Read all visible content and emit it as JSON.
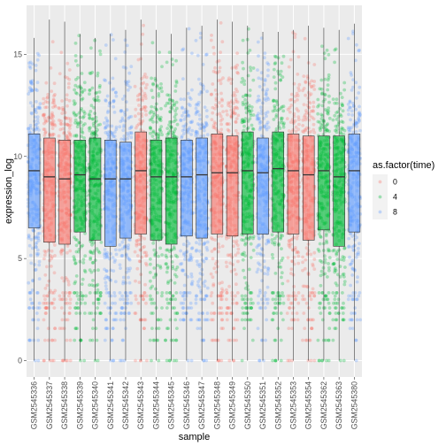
{
  "chart_data": {
    "type": "boxplot-jitter",
    "xlabel": "sample",
    "ylabel": "expression_log",
    "ylim": [
      -0.8,
      17.4
    ],
    "yticks": [
      0,
      5,
      10,
      15
    ],
    "legend": {
      "title": "as.factor(time)",
      "position": "right",
      "entries": [
        {
          "label": "0",
          "color": "#F8766D"
        },
        {
          "label": "4",
          "color": "#00BA38"
        },
        {
          "label": "8",
          "color": "#619CFF"
        }
      ]
    },
    "samples": [
      {
        "name": "GSM2545336",
        "time": "8",
        "min": 0,
        "q1": 6.5,
        "median": 9.3,
        "q3": 11.1,
        "max": 15.8
      },
      {
        "name": "GSM2545337",
        "time": "0",
        "min": 0,
        "q1": 5.8,
        "median": 9.0,
        "q3": 10.9,
        "max": 16.7
      },
      {
        "name": "GSM2545338",
        "time": "0",
        "min": 0,
        "q1": 5.7,
        "median": 8.9,
        "q3": 10.8,
        "max": 16.6
      },
      {
        "name": "GSM2545339",
        "time": "4",
        "min": 0,
        "q1": 6.3,
        "median": 9.1,
        "q3": 10.8,
        "max": 16.0
      },
      {
        "name": "GSM2545340",
        "time": "4",
        "min": 0,
        "q1": 5.9,
        "median": 8.9,
        "q3": 10.9,
        "max": 15.8
      },
      {
        "name": "GSM2545341",
        "time": "8",
        "min": 0,
        "q1": 5.6,
        "median": 8.9,
        "q3": 10.8,
        "max": 16.0
      },
      {
        "name": "GSM2545342",
        "time": "8",
        "min": 0,
        "q1": 6.0,
        "median": 8.9,
        "q3": 10.7,
        "max": 16.2
      },
      {
        "name": "GSM2545343",
        "time": "0",
        "min": 0,
        "q1": 6.2,
        "median": 9.3,
        "q3": 11.2,
        "max": 16.7
      },
      {
        "name": "GSM2545344",
        "time": "4",
        "min": 0,
        "q1": 5.9,
        "median": 9.0,
        "q3": 10.8,
        "max": 16.2
      },
      {
        "name": "GSM2545345",
        "time": "4",
        "min": 0,
        "q1": 5.7,
        "median": 9.0,
        "q3": 10.9,
        "max": 16.0
      },
      {
        "name": "GSM2545346",
        "time": "8",
        "min": 0,
        "q1": 6.1,
        "median": 9.0,
        "q3": 10.8,
        "max": 16.3
      },
      {
        "name": "GSM2545347",
        "time": "8",
        "min": 0,
        "q1": 6.0,
        "median": 9.1,
        "q3": 10.9,
        "max": 16.4
      },
      {
        "name": "GSM2545348",
        "time": "0",
        "min": 0,
        "q1": 6.2,
        "median": 9.2,
        "q3": 11.1,
        "max": 16.7
      },
      {
        "name": "GSM2545349",
        "time": "0",
        "min": 0,
        "q1": 6.1,
        "median": 9.2,
        "q3": 11.0,
        "max": 16.6
      },
      {
        "name": "GSM2545350",
        "time": "4",
        "min": 0,
        "q1": 6.2,
        "median": 9.3,
        "q3": 11.2,
        "max": 16.4
      },
      {
        "name": "GSM2545351",
        "time": "8",
        "min": 0,
        "q1": 6.2,
        "median": 9.2,
        "q3": 10.9,
        "max": 16.1
      },
      {
        "name": "GSM2545352",
        "time": "4",
        "min": 0,
        "q1": 6.3,
        "median": 9.4,
        "q3": 11.2,
        "max": 16.1
      },
      {
        "name": "GSM2545353",
        "time": "0",
        "min": 0,
        "q1": 6.2,
        "median": 9.3,
        "q3": 11.1,
        "max": 16.2
      },
      {
        "name": "GSM2545354",
        "time": "0",
        "min": 0,
        "q1": 5.9,
        "median": 9.1,
        "q3": 11.0,
        "max": 16.4
      },
      {
        "name": "GSM2545362",
        "time": "4",
        "min": 0,
        "q1": 6.4,
        "median": 9.3,
        "q3": 11.0,
        "max": 16.3
      },
      {
        "name": "GSM2545363",
        "time": "4",
        "min": 0,
        "q1": 5.6,
        "median": 9.0,
        "q3": 11.0,
        "max": 16.2
      },
      {
        "name": "GSM2545380",
        "time": "8",
        "min": 0,
        "q1": 6.3,
        "median": 9.3,
        "q3": 11.1,
        "max": 16.5
      }
    ]
  }
}
